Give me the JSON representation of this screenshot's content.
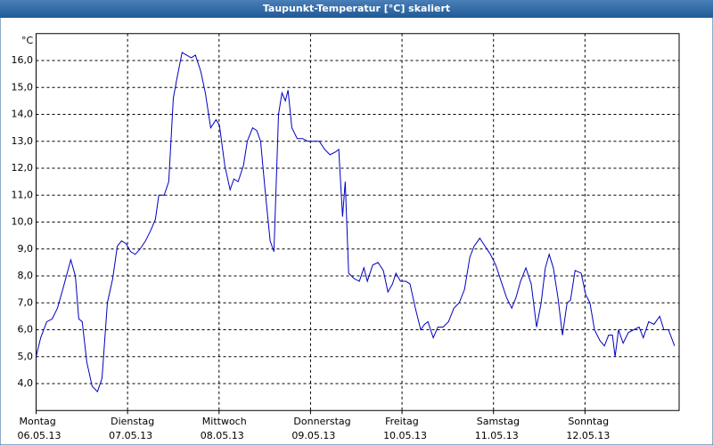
{
  "chart_data": {
    "type": "line",
    "title": "Taupunkt-Temperatur [°C] skaliert",
    "y_label": "°C",
    "x": [
      0,
      1.2,
      2.8,
      4.2,
      5.6,
      7,
      9.1,
      10.3,
      11.2,
      12.1,
      13.3,
      14.7,
      16.1,
      17.3,
      18.7,
      20.1,
      21.3,
      22.4,
      23.6,
      24.8,
      26,
      27.3,
      28.7,
      30.1,
      31.3,
      32.2,
      33.6,
      34.8,
      36,
      36.9,
      38.3,
      39.5,
      40.7,
      41.8,
      43.2,
      44.4,
      45.8,
      47.2,
      48.1,
      49.5,
      50.9,
      51.9,
      53,
      54.4,
      55.4,
      56.8,
      57.9,
      58.9,
      60,
      61.4,
      62.4,
      63.6,
      64.5,
      65.4,
      66.1,
      67.1,
      68.5,
      69.9,
      71.3,
      72.9,
      74.3,
      75.7,
      77.1,
      78.5,
      79.4,
      80.4,
      81.1,
      82,
      83.4,
      84.8,
      86,
      86.9,
      88.3,
      89.7,
      91.1,
      92.3,
      93.5,
      94.4,
      95.6,
      97,
      98.1,
      99.5,
      100.9,
      101.9,
      102.8,
      104.2,
      105.4,
      106.8,
      108.2,
      109.6,
      111,
      112.4,
      113.8,
      114.9,
      116.4,
      117.8,
      119.2,
      120.6,
      122,
      123.4,
      124.8,
      125.9,
      127.1,
      128.5,
      129.9,
      131.3,
      132.5,
      133.6,
      134.6,
      135.7,
      136.9,
      138.1,
      139.3,
      140.2,
      141.4,
      143,
      144.2,
      145.3,
      146.5,
      147.9,
      149.1,
      150.2,
      151.2,
      151.9,
      152.8,
      154,
      155.4,
      156.8,
      158.2,
      159.3,
      160.7,
      162.1,
      163.6,
      164.7,
      165.9,
      167.5
    ],
    "series": [
      {
        "name": "Taupunkt",
        "color": "#0000c0",
        "values": [
          5.0,
          5.7,
          6.3,
          6.4,
          6.8,
          7.5,
          8.6,
          8.0,
          6.4,
          6.3,
          4.8,
          3.9,
          3.7,
          4.2,
          7.0,
          7.9,
          9.1,
          9.3,
          9.2,
          8.9,
          8.8,
          9.0,
          9.3,
          9.7,
          10.1,
          11.0,
          11.0,
          11.5,
          14.6,
          15.3,
          16.3,
          16.2,
          16.1,
          16.2,
          15.6,
          14.8,
          13.5,
          13.8,
          13.6,
          12.1,
          11.2,
          11.6,
          11.5,
          12.1,
          13.0,
          13.5,
          13.4,
          13.0,
          11.3,
          9.3,
          8.9,
          14.0,
          14.8,
          14.5,
          14.9,
          13.5,
          13.1,
          13.1,
          13.0,
          13.0,
          13.0,
          12.7,
          12.5,
          12.6,
          12.7,
          10.2,
          11.5,
          8.1,
          7.9,
          7.8,
          8.3,
          7.8,
          8.4,
          8.5,
          8.2,
          7.4,
          7.7,
          8.1,
          7.8,
          7.8,
          7.7,
          6.8,
          6.0,
          6.2,
          6.3,
          5.7,
          6.1,
          6.1,
          6.3,
          6.8,
          7.0,
          7.5,
          8.7,
          9.1,
          9.4,
          9.1,
          8.8,
          8.4,
          7.8,
          7.2,
          6.8,
          7.2,
          7.8,
          8.3,
          7.7,
          6.1,
          7.0,
          8.3,
          8.8,
          8.3,
          7.2,
          5.8,
          7.0,
          7.1,
          8.2,
          8.1,
          7.3,
          7.0,
          6.0,
          5.6,
          5.4,
          5.8,
          5.8,
          5.0,
          6.0,
          5.5,
          5.9,
          6.0,
          6.1,
          5.7,
          6.3,
          6.2,
          6.5,
          6.0,
          6.0,
          5.4
        ]
      }
    ],
    "xlim": [
      0,
      168.7
    ],
    "xticks": [
      {
        "value": 0,
        "label": "Montag",
        "sublabel": "06.05.13"
      },
      {
        "value": 24,
        "label": "Dienstag",
        "sublabel": "07.05.13"
      },
      {
        "value": 48,
        "label": "Mittwoch",
        "sublabel": "08.05.13"
      },
      {
        "value": 72,
        "label": "Donnerstag",
        "sublabel": "09.05.13"
      },
      {
        "value": 96,
        "label": "Freitag",
        "sublabel": "10.05.13"
      },
      {
        "value": 120,
        "label": "Samstag",
        "sublabel": "11.05.13"
      },
      {
        "value": 144,
        "label": "Sonntag",
        "sublabel": "12.05.13"
      }
    ],
    "ylim": [
      3,
      17
    ],
    "yticks": [
      {
        "value": 4,
        "label": "4,0"
      },
      {
        "value": 5,
        "label": "5,0"
      },
      {
        "value": 6,
        "label": "6,0"
      },
      {
        "value": 7,
        "label": "7,0"
      },
      {
        "value": 8,
        "label": "8,0"
      },
      {
        "value": 9,
        "label": "9,0"
      },
      {
        "value": 10,
        "label": "10,0"
      },
      {
        "value": 11,
        "label": "11,0"
      },
      {
        "value": 12,
        "label": "12,0"
      },
      {
        "value": 13,
        "label": "13,0"
      },
      {
        "value": 14,
        "label": "14,0"
      },
      {
        "value": 15,
        "label": "15,0"
      },
      {
        "value": 16,
        "label": "16,0"
      }
    ],
    "grid": true
  }
}
